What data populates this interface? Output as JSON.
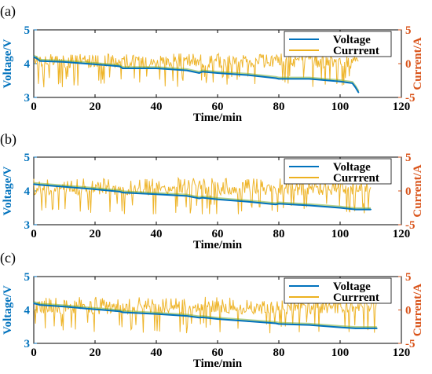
{
  "chart_data": [
    {
      "type": "line",
      "panel_label": "(a)",
      "xlabel": "Time/min",
      "ylabel_left": "Voltage/V",
      "ylabel_right": "Current/A",
      "xlim": [
        0,
        120
      ],
      "ylim_left": [
        3,
        5
      ],
      "ylim_right": [
        -5,
        5
      ],
      "xticks": [
        "0",
        "20",
        "40",
        "60",
        "80",
        "100",
        "120"
      ],
      "yticks_left": [
        "3",
        "4",
        "5"
      ],
      "yticks_right": [
        "-5",
        "0",
        "5"
      ],
      "legend": [
        "Voltage",
        "Currrent"
      ],
      "legend_position": "top-right",
      "series": [
        {
          "name": "Voltage",
          "axis": "left",
          "color": "#0072BD",
          "x": [
            0,
            1,
            2,
            10,
            20,
            28,
            29,
            40,
            50,
            54,
            55,
            60,
            70,
            79,
            80,
            90,
            100,
            104,
            105,
            106
          ],
          "y": [
            4.2,
            4.15,
            4.08,
            4.05,
            3.98,
            3.92,
            3.86,
            3.86,
            3.8,
            3.72,
            3.76,
            3.72,
            3.66,
            3.57,
            3.55,
            3.55,
            3.47,
            3.42,
            3.3,
            3.15
          ]
        },
        {
          "name": "Currrent",
          "axis": "right",
          "color": "#EDB120",
          "x": [
            0,
            106
          ],
          "mean": 0,
          "upper": 1.5,
          "lower": -3.5
        }
      ]
    },
    {
      "type": "line",
      "panel_label": "(b)",
      "xlabel": "Time/min",
      "ylabel_left": "Voltage/V",
      "ylabel_right": "Current/A",
      "xlim": [
        0,
        120
      ],
      "ylim_left": [
        3,
        5
      ],
      "ylim_right": [
        -5,
        5
      ],
      "xticks": [
        "0",
        "20",
        "40",
        "60",
        "80",
        "100",
        "120"
      ],
      "yticks_left": [
        "3",
        "4",
        "5"
      ],
      "yticks_right": [
        "-5",
        "0",
        "5"
      ],
      "legend": [
        "Voltage",
        "Currrent"
      ],
      "legend_position": "top-right",
      "series": [
        {
          "name": "Voltage",
          "axis": "left",
          "color": "#0072BD",
          "x": [
            0,
            2,
            10,
            20,
            28,
            29,
            40,
            50,
            54,
            55,
            60,
            70,
            79,
            80,
            90,
            100,
            105,
            110
          ],
          "y": [
            4.2,
            4.18,
            4.12,
            4.05,
            3.98,
            3.95,
            3.9,
            3.85,
            3.78,
            3.8,
            3.75,
            3.68,
            3.6,
            3.62,
            3.57,
            3.5,
            3.45,
            3.45
          ]
        },
        {
          "name": "Currrent",
          "axis": "right",
          "color": "#EDB120",
          "x": [
            0,
            110
          ],
          "mean": 0,
          "upper": 2.0,
          "lower": -3.5
        }
      ]
    },
    {
      "type": "line",
      "panel_label": "(c)",
      "xlabel": "Time/min",
      "ylabel_left": "Voltage/V",
      "ylabel_right": "Current/A",
      "xlim": [
        0,
        120
      ],
      "ylim_left": [
        3,
        5
      ],
      "ylim_right": [
        -5,
        5
      ],
      "xticks": [
        "0",
        "20",
        "40",
        "60",
        "80",
        "100",
        "120"
      ],
      "yticks_left": [
        "3",
        "4",
        "5"
      ],
      "yticks_right": [
        "-5",
        "0",
        "5"
      ],
      "legend": [
        "Voltage",
        "Currrent"
      ],
      "legend_position": "top-right",
      "series": [
        {
          "name": "Voltage",
          "axis": "left",
          "color": "#0072BD",
          "x": [
            0,
            2,
            10,
            20,
            28,
            29,
            40,
            50,
            54,
            55,
            60,
            70,
            79,
            80,
            90,
            100,
            105,
            112
          ],
          "y": [
            4.2,
            4.15,
            4.1,
            4.02,
            3.96,
            3.93,
            3.88,
            3.82,
            3.77,
            3.78,
            3.73,
            3.66,
            3.6,
            3.58,
            3.55,
            3.48,
            3.45,
            3.45
          ]
        },
        {
          "name": "Currrent",
          "axis": "right",
          "color": "#EDB120",
          "x": [
            0,
            112
          ],
          "mean": 0,
          "upper": 2.0,
          "lower": -3.5
        }
      ]
    }
  ]
}
